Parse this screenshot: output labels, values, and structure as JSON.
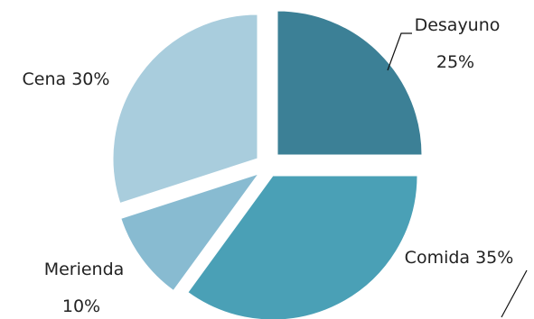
{
  "chart_data": {
    "type": "pie",
    "title": "",
    "start_angle_deg": 0,
    "direction": "clockwise",
    "exploded": true,
    "slices": [
      {
        "name": "Desayuno",
        "value": 25,
        "label_line1": "Desayuno",
        "label_line2": "25%",
        "color": "#3c8096"
      },
      {
        "name": "Comida",
        "value": 35,
        "label_line1": "Comida 35%",
        "label_line2": "",
        "color": "#4aa0b6"
      },
      {
        "name": "Merienda",
        "value": 10,
        "label_line1": "Merienda",
        "label_line2": "10%",
        "color": "#88bbd1"
      },
      {
        "name": "Cena",
        "value": 30,
        "label_line1": "Cena 30%",
        "label_line2": "",
        "color": "#a9cddd"
      }
    ]
  }
}
